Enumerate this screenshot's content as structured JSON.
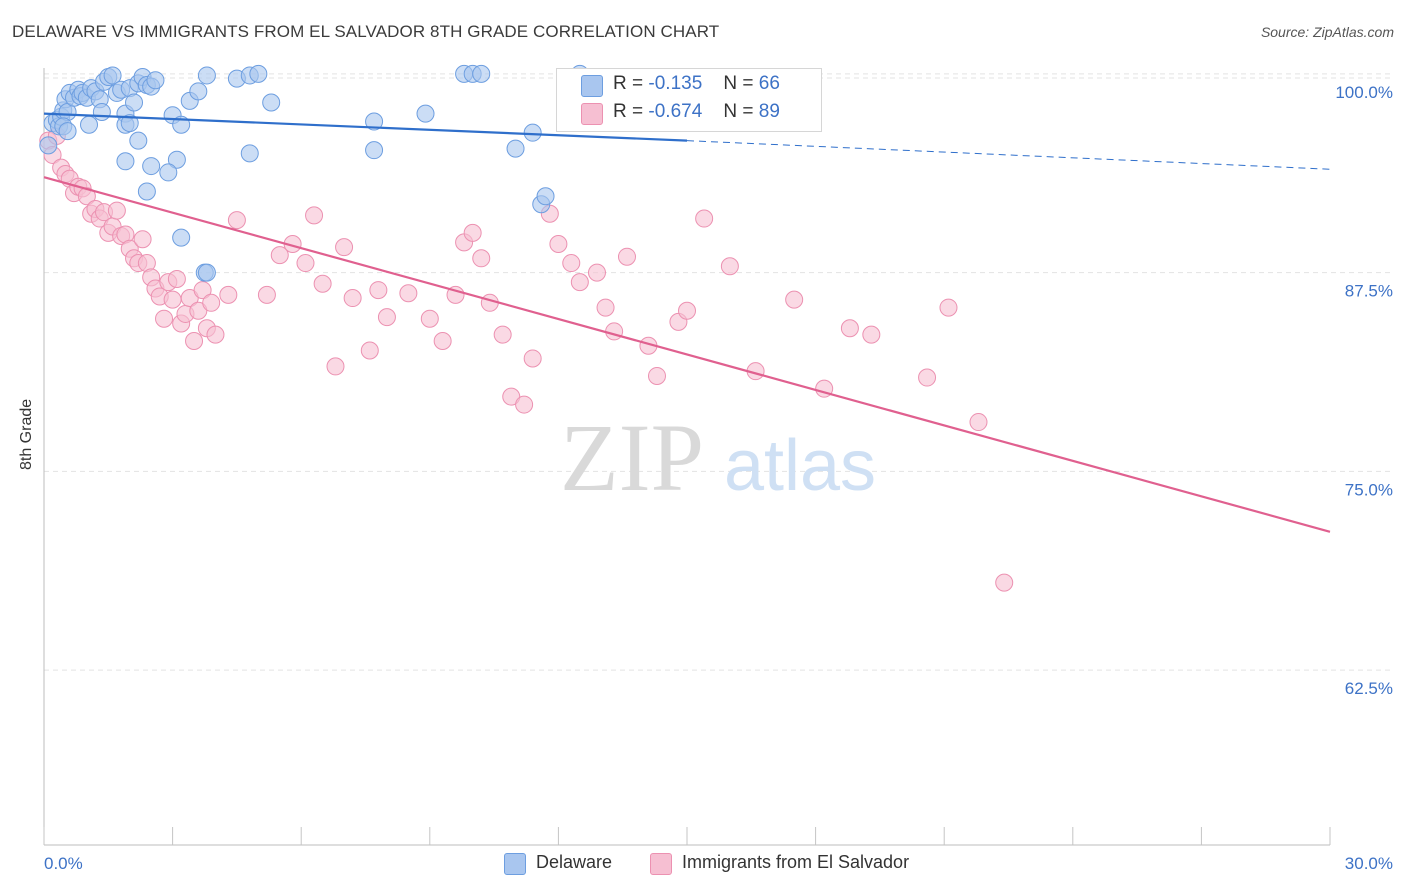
{
  "title": "DELAWARE VS IMMIGRANTS FROM EL SALVADOR 8TH GRADE CORRELATION CHART",
  "source": "Source: ZipAtlas.com",
  "watermark": {
    "zip": "ZIP",
    "atlas": "atlas"
  },
  "legend": {
    "rows": [
      {
        "r_label": "R =",
        "r_value": "-0.135",
        "n_label": "N =",
        "n_value": "66"
      },
      {
        "r_label": "R =",
        "r_value": "-0.674",
        "n_label": "N =",
        "n_value": "89"
      }
    ]
  },
  "bottom_legend": [
    "Delaware",
    "Immigrants from El Salvador"
  ],
  "colors": {
    "blue_fill": "#a9c6ef",
    "blue_stroke": "#6d9ee0",
    "blue_line": "#2f6fcb",
    "pink_fill": "#f6bfd2",
    "pink_stroke": "#ec91b1",
    "pink_line": "#e0608f",
    "tick_label": "#3d72c6",
    "grid": "#e3e3e3"
  },
  "chart_data": {
    "type": "scatter",
    "title": "DELAWARE VS IMMIGRANTS FROM EL SALVADOR 8TH GRADE CORRELATION CHART",
    "xlabel": "",
    "ylabel": "8th Grade",
    "xlim": [
      0,
      30
    ],
    "ylim": [
      51.5,
      101.5
    ],
    "x_tick_labels": [
      "0.0%",
      "30.0%"
    ],
    "y_ticks": [
      100.0,
      87.5,
      75.0,
      62.5
    ],
    "y_tick_labels": [
      "100.0%",
      "87.5%",
      "75.0%",
      "62.5%"
    ],
    "grid": true,
    "legend_position": "top-center",
    "series": [
      {
        "name": "Delaware",
        "r": -0.135,
        "n": 66,
        "trend": {
          "x0": 0,
          "y0": 97.5,
          "x1": 15,
          "y1": 95.8,
          "dashed_to_x": 30,
          "dashed_y": 94.0
        },
        "points": [
          [
            0.1,
            95.5
          ],
          [
            0.2,
            96.9
          ],
          [
            0.3,
            97.1
          ],
          [
            0.35,
            96.7
          ],
          [
            0.4,
            97.3
          ],
          [
            0.45,
            97.7
          ],
          [
            0.5,
            98.4
          ],
          [
            0.55,
            97.6
          ],
          [
            0.6,
            98.8
          ],
          [
            0.7,
            98.5
          ],
          [
            0.8,
            99.0
          ],
          [
            0.85,
            98.6
          ],
          [
            0.9,
            98.8
          ],
          [
            1.0,
            98.5
          ],
          [
            1.1,
            99.1
          ],
          [
            1.2,
            98.9
          ],
          [
            1.3,
            98.4
          ],
          [
            1.4,
            99.5
          ],
          [
            1.5,
            99.8
          ],
          [
            1.6,
            99.9
          ],
          [
            1.7,
            98.8
          ],
          [
            1.8,
            99.0
          ],
          [
            1.9,
            97.5
          ],
          [
            2.0,
            99.1
          ],
          [
            2.1,
            98.2
          ],
          [
            2.2,
            99.4
          ],
          [
            2.3,
            99.8
          ],
          [
            2.4,
            99.3
          ],
          [
            2.5,
            99.2
          ],
          [
            2.6,
            99.6
          ],
          [
            0.45,
            96.7
          ],
          [
            0.55,
            96.4
          ],
          [
            1.05,
            96.8
          ],
          [
            1.35,
            97.6
          ],
          [
            1.9,
            96.8
          ],
          [
            2.0,
            96.9
          ],
          [
            2.2,
            95.8
          ],
          [
            1.9,
            94.5
          ],
          [
            2.5,
            94.2
          ],
          [
            2.4,
            92.6
          ],
          [
            3.0,
            97.4
          ],
          [
            3.2,
            96.8
          ],
          [
            3.4,
            98.3
          ],
          [
            3.6,
            98.9
          ],
          [
            3.8,
            99.9
          ],
          [
            4.5,
            99.7
          ],
          [
            4.8,
            99.9
          ],
          [
            5.0,
            100.0
          ],
          [
            5.3,
            98.2
          ],
          [
            3.1,
            94.6
          ],
          [
            2.9,
            93.8
          ],
          [
            3.2,
            89.7
          ],
          [
            3.75,
            87.5
          ],
          [
            3.8,
            87.5
          ],
          [
            4.8,
            95.0
          ],
          [
            7.7,
            97.0
          ],
          [
            7.7,
            95.2
          ],
          [
            8.9,
            97.5
          ],
          [
            9.8,
            100.0
          ],
          [
            10.0,
            100.0
          ],
          [
            10.2,
            100.0
          ],
          [
            11.0,
            95.3
          ],
          [
            11.4,
            96.3
          ],
          [
            11.6,
            91.8
          ],
          [
            11.7,
            92.3
          ],
          [
            12.5,
            100.0
          ]
        ]
      },
      {
        "name": "Immigrants from El Salvador",
        "r": -0.674,
        "n": 89,
        "trend": {
          "x0": 0,
          "y0": 93.5,
          "x1": 30,
          "y1": 71.2
        },
        "points": [
          [
            0.1,
            95.8
          ],
          [
            0.2,
            94.9
          ],
          [
            0.3,
            96.1
          ],
          [
            0.4,
            94.1
          ],
          [
            0.5,
            93.7
          ],
          [
            0.6,
            93.4
          ],
          [
            0.7,
            92.5
          ],
          [
            0.8,
            92.9
          ],
          [
            0.9,
            92.8
          ],
          [
            1.0,
            92.3
          ],
          [
            1.1,
            91.2
          ],
          [
            1.2,
            91.5
          ],
          [
            1.3,
            90.9
          ],
          [
            1.4,
            91.3
          ],
          [
            1.5,
            90.0
          ],
          [
            1.6,
            90.4
          ],
          [
            1.7,
            91.4
          ],
          [
            1.8,
            89.8
          ],
          [
            1.9,
            89.9
          ],
          [
            2.0,
            89.0
          ],
          [
            2.1,
            88.4
          ],
          [
            2.2,
            88.1
          ],
          [
            2.3,
            89.6
          ],
          [
            2.4,
            88.1
          ],
          [
            2.5,
            87.2
          ],
          [
            2.6,
            86.5
          ],
          [
            2.7,
            86.0
          ],
          [
            2.8,
            84.6
          ],
          [
            2.9,
            86.9
          ],
          [
            3.0,
            85.8
          ],
          [
            3.1,
            87.1
          ],
          [
            3.2,
            84.3
          ],
          [
            3.3,
            84.9
          ],
          [
            3.4,
            85.9
          ],
          [
            3.5,
            83.2
          ],
          [
            3.6,
            85.1
          ],
          [
            3.7,
            86.4
          ],
          [
            3.8,
            84.0
          ],
          [
            3.9,
            85.6
          ],
          [
            4.0,
            83.6
          ],
          [
            4.3,
            86.1
          ],
          [
            4.5,
            90.8
          ],
          [
            5.2,
            86.1
          ],
          [
            5.5,
            88.6
          ],
          [
            5.8,
            89.3
          ],
          [
            6.1,
            88.1
          ],
          [
            6.3,
            91.1
          ],
          [
            6.5,
            86.8
          ],
          [
            6.8,
            81.6
          ],
          [
            7.0,
            89.1
          ],
          [
            7.2,
            85.9
          ],
          [
            7.6,
            82.6
          ],
          [
            7.8,
            86.4
          ],
          [
            8.0,
            84.7
          ],
          [
            8.5,
            86.2
          ],
          [
            9.0,
            84.6
          ],
          [
            9.3,
            83.2
          ],
          [
            9.6,
            86.1
          ],
          [
            9.8,
            89.4
          ],
          [
            10.0,
            90.0
          ],
          [
            10.2,
            88.4
          ],
          [
            10.4,
            85.6
          ],
          [
            10.7,
            83.6
          ],
          [
            10.9,
            79.7
          ],
          [
            11.2,
            79.2
          ],
          [
            11.4,
            82.1
          ],
          [
            11.8,
            91.2
          ],
          [
            12.0,
            89.3
          ],
          [
            12.3,
            88.1
          ],
          [
            12.5,
            86.9
          ],
          [
            12.9,
            87.5
          ],
          [
            13.1,
            85.3
          ],
          [
            13.3,
            83.8
          ],
          [
            13.6,
            88.5
          ],
          [
            14.1,
            82.9
          ],
          [
            14.3,
            81.0
          ],
          [
            14.8,
            84.4
          ],
          [
            15.0,
            85.1
          ],
          [
            15.4,
            90.9
          ],
          [
            16.0,
            87.9
          ],
          [
            16.6,
            81.3
          ],
          [
            17.5,
            85.8
          ],
          [
            18.2,
            80.2
          ],
          [
            18.8,
            84.0
          ],
          [
            19.3,
            83.6
          ],
          [
            20.6,
            80.9
          ],
          [
            21.1,
            85.3
          ],
          [
            21.8,
            78.1
          ],
          [
            22.4,
            68.0
          ]
        ]
      }
    ]
  }
}
